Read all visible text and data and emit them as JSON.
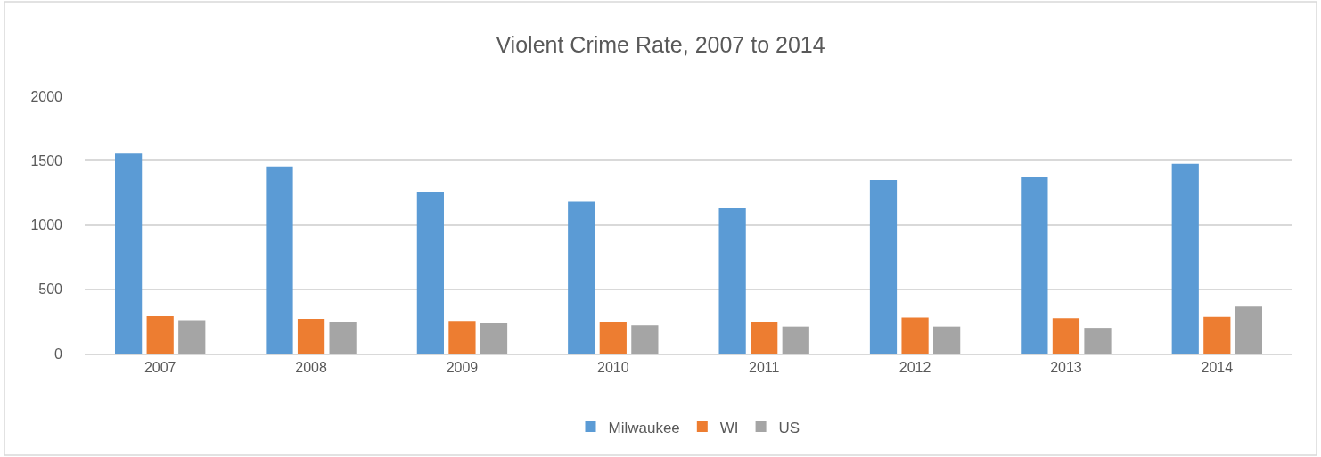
{
  "chart_data": {
    "type": "bar",
    "title": "Violent Crime Rate, 2007 to 2014",
    "categories": [
      "2007",
      "2008",
      "2009",
      "2010",
      "2011",
      "2012",
      "2013",
      "2014"
    ],
    "series": [
      {
        "name": "Milwaukee",
        "color": "#5b9bd5",
        "values": [
          1555,
          1455,
          1260,
          1180,
          1130,
          1350,
          1370,
          1475
        ]
      },
      {
        "name": "WI",
        "color": "#ed7d31",
        "values": [
          290,
          270,
          255,
          245,
          245,
          280,
          275,
          285
        ]
      },
      {
        "name": "US",
        "color": "#a5a5a5",
        "values": [
          260,
          250,
          235,
          220,
          210,
          210,
          200,
          365
        ]
      }
    ],
    "ylim": [
      0,
      2000
    ],
    "yticks": [
      0,
      500,
      1000,
      1500,
      2000
    ],
    "grid": "y",
    "legend": "bottom"
  }
}
